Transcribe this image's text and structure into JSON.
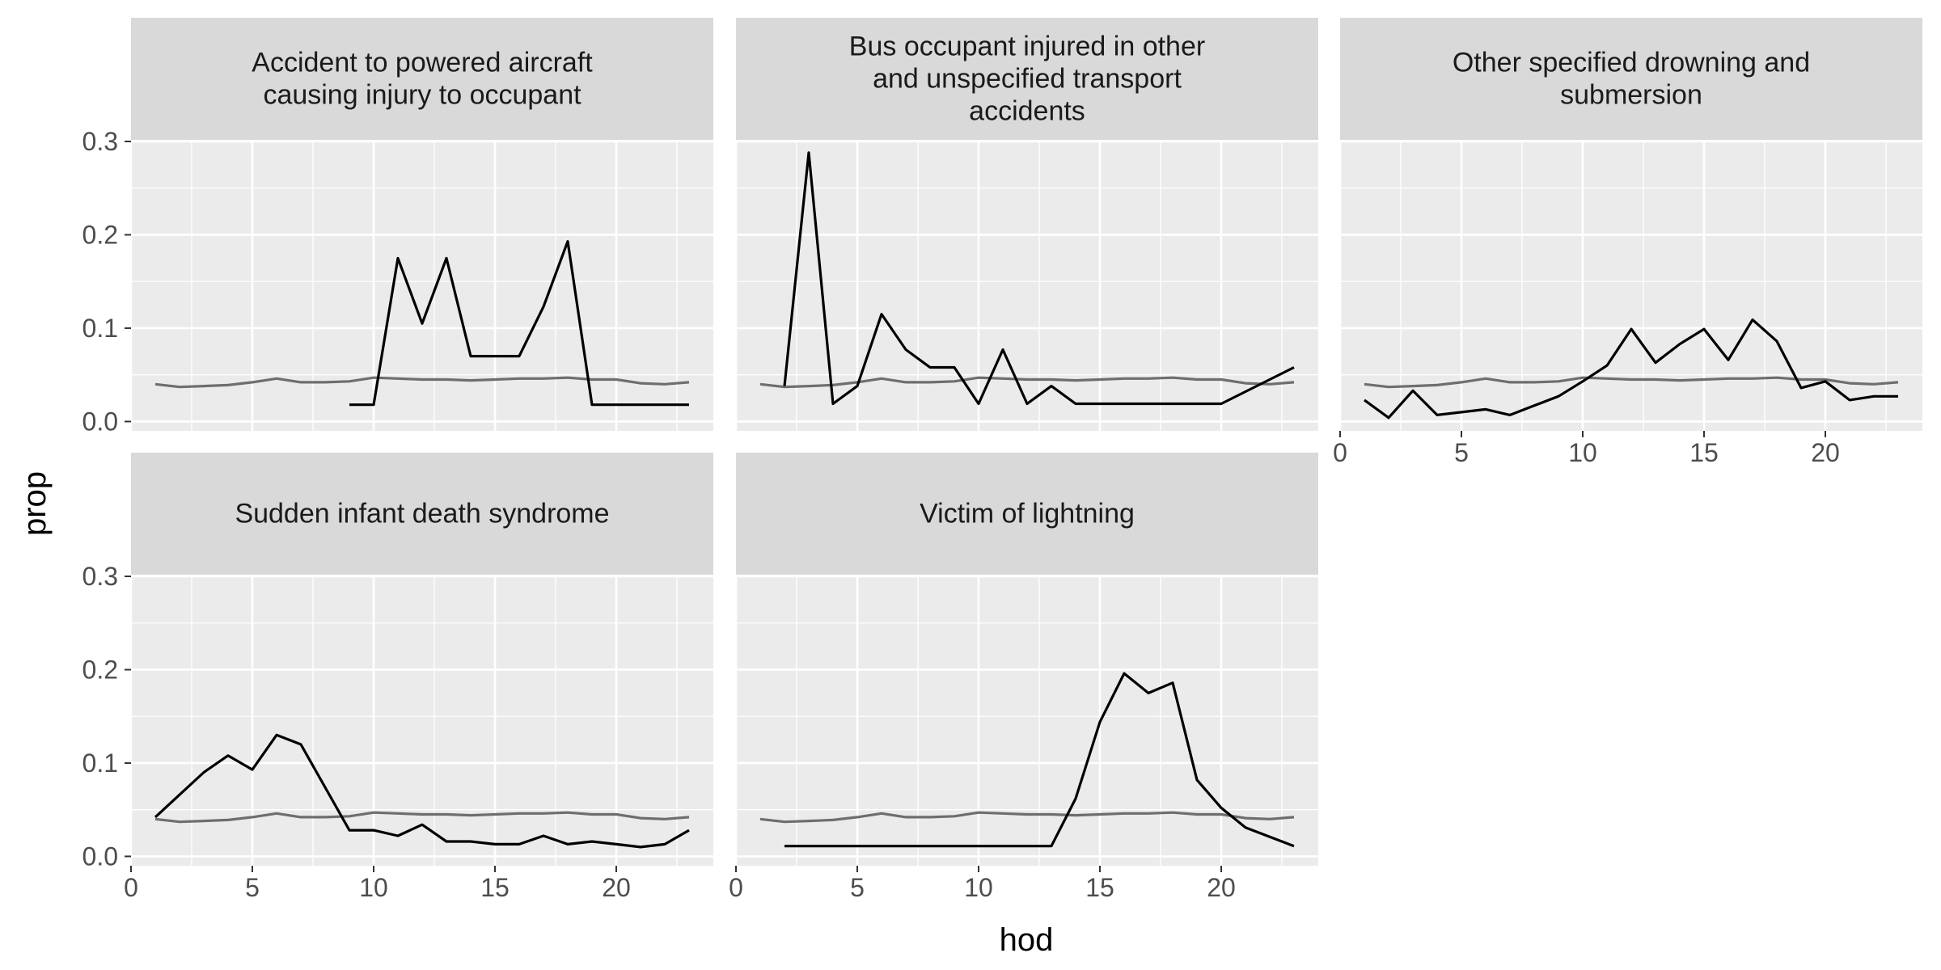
{
  "chart_data": {
    "type": "line",
    "xlabel": "hod",
    "ylabel": "prop",
    "xlim": [
      0,
      24
    ],
    "ylim": [
      -0.01,
      0.3
    ],
    "x_ticks": [
      0,
      5,
      10,
      15,
      20
    ],
    "y_ticks": [
      0.0,
      0.1,
      0.2,
      0.3
    ],
    "y_tick_labels": [
      "0.0",
      "0.1",
      "0.2",
      "0.3"
    ],
    "grid": true,
    "colors": {
      "panel_bg": "#EBEBEB",
      "strip_bg": "#D9D9D9",
      "grid": "#FFFFFF",
      "overall_line": "#6E6E6E",
      "cause_line": "#000000"
    },
    "overall": {
      "x": [
        1,
        2,
        3,
        4,
        5,
        6,
        7,
        8,
        9,
        10,
        11,
        12,
        13,
        14,
        15,
        16,
        17,
        18,
        19,
        20,
        21,
        22,
        23
      ],
      "values": [
        0.04,
        0.037,
        0.038,
        0.039,
        0.042,
        0.046,
        0.042,
        0.042,
        0.043,
        0.047,
        0.046,
        0.045,
        0.045,
        0.044,
        0.045,
        0.046,
        0.046,
        0.047,
        0.045,
        0.045,
        0.041,
        0.04,
        0.042
      ]
    },
    "panels": [
      {
        "title": "Accident to powered aircraft causing injury to occupant",
        "title_lines": [
          "Accident to powered aircraft",
          "causing injury to occupant"
        ],
        "show_x_axis": false,
        "x": [
          9,
          10,
          11,
          12,
          13,
          14,
          15,
          16,
          17,
          18,
          19,
          20,
          21,
          22,
          23
        ],
        "values": [
          0.018,
          0.018,
          0.175,
          0.105,
          0.175,
          0.07,
          0.07,
          0.07,
          0.123,
          0.193,
          0.018,
          0.018,
          0.018,
          0.018,
          0.018
        ]
      },
      {
        "title": "Bus occupant injured in other and unspecified transport accidents",
        "title_lines": [
          "Bus occupant injured in other",
          "and unspecified transport",
          "accidents"
        ],
        "show_x_axis": false,
        "x": [
          2,
          3,
          4,
          5,
          6,
          7,
          8,
          9,
          10,
          11,
          12,
          13,
          14,
          15,
          16,
          17,
          18,
          19,
          20,
          21,
          22,
          23
        ],
        "values": [
          0.038,
          0.288,
          0.019,
          0.038,
          0.115,
          0.077,
          0.058,
          0.058,
          0.019,
          0.077,
          0.019,
          0.038,
          0.019,
          0.019,
          0.019,
          0.019,
          0.019,
          0.019,
          0.019,
          0.032,
          0.045,
          0.058
        ]
      },
      {
        "title": "Other specified drowning and submersion",
        "title_lines": [
          "Other specified drowning and",
          "submersion"
        ],
        "show_x_axis": true,
        "x": [
          1,
          2,
          3,
          4,
          5,
          6,
          7,
          8,
          9,
          10,
          11,
          12,
          13,
          14,
          15,
          16,
          17,
          18,
          19,
          20,
          21,
          22,
          23
        ],
        "values": [
          0.023,
          0.004,
          0.033,
          0.007,
          0.01,
          0.013,
          0.007,
          0.017,
          0.027,
          0.043,
          0.06,
          0.099,
          0.063,
          0.083,
          0.099,
          0.066,
          0.109,
          0.086,
          0.036,
          0.043,
          0.023,
          0.027,
          0.027
        ]
      },
      {
        "title": "Sudden infant death syndrome",
        "title_lines": [
          "Sudden infant death syndrome"
        ],
        "show_x_axis": true,
        "x": [
          1,
          2,
          3,
          4,
          5,
          6,
          7,
          8,
          9,
          10,
          11,
          12,
          13,
          14,
          15,
          16,
          17,
          18,
          19,
          20,
          21,
          22,
          23
        ],
        "values": [
          0.042,
          0.066,
          0.09,
          0.108,
          0.093,
          0.13,
          0.12,
          0.074,
          0.028,
          0.028,
          0.022,
          0.034,
          0.016,
          0.016,
          0.013,
          0.013,
          0.022,
          0.013,
          0.016,
          0.013,
          0.01,
          0.013,
          0.028
        ]
      },
      {
        "title": "Victim of lightning",
        "title_lines": [
          "Victim of lightning"
        ],
        "show_x_axis": true,
        "x": [
          2,
          3,
          4,
          5,
          6,
          7,
          8,
          9,
          10,
          11,
          12,
          13,
          14,
          15,
          16,
          17,
          18,
          19,
          20,
          21,
          22,
          23
        ],
        "values": [
          0.011,
          0.011,
          0.011,
          0.011,
          0.011,
          0.011,
          0.011,
          0.011,
          0.011,
          0.011,
          0.011,
          0.011,
          0.062,
          0.144,
          0.196,
          0.175,
          0.186,
          0.082,
          0.052,
          0.031,
          0.021,
          0.011
        ]
      }
    ]
  }
}
